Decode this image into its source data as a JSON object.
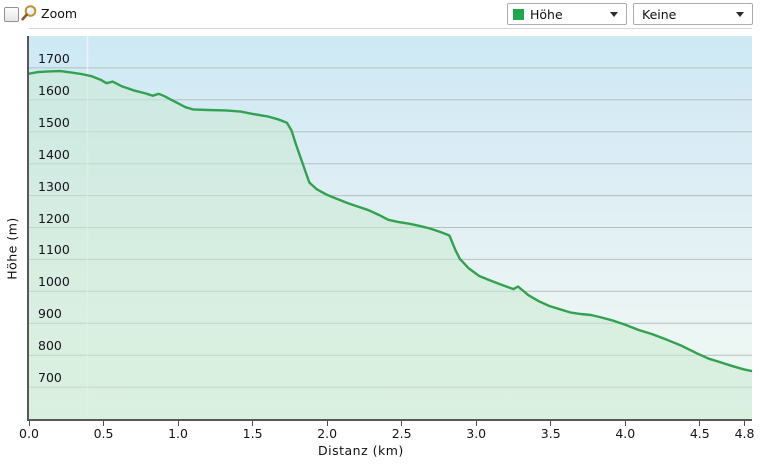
{
  "toolbar": {
    "zoom_label": "Zoom",
    "series_combo": {
      "value": "Höhe",
      "swatch_color": "#1fa84f"
    },
    "overlay_combo": {
      "value": "Keine"
    }
  },
  "chart_data": {
    "type": "area",
    "xlabel": "Distanz  (km)",
    "ylabel": "Höhe (m)",
    "xlim": [
      0,
      4.85
    ],
    "ylim": [
      600,
      1800
    ],
    "grid": true,
    "y_gridlines": [
      700,
      800,
      900,
      1000,
      1100,
      1200,
      1300,
      1400,
      1500,
      1600,
      1700
    ],
    "y_tick_labels": [
      "700",
      "800",
      "900",
      "1000",
      "1100",
      "1200",
      "1300",
      "1400",
      "1500",
      "1600",
      "1700"
    ],
    "x_ticks": [
      {
        "v": 0.0,
        "label": "0.0"
      },
      {
        "v": 0.5,
        "label": "0.5"
      },
      {
        "v": 1.0,
        "label": "1.0"
      },
      {
        "v": 1.5,
        "label": "1.5"
      },
      {
        "v": 2.0,
        "label": "2.0"
      },
      {
        "v": 2.5,
        "label": "2.5"
      },
      {
        "v": 3.0,
        "label": "3.0"
      },
      {
        "v": 3.5,
        "label": "3.5"
      },
      {
        "v": 4.0,
        "label": "4.0"
      },
      {
        "v": 4.5,
        "label": "4.5"
      },
      {
        "v": 4.8,
        "label": "4.8"
      }
    ],
    "colors": {
      "line": "#31a24e",
      "area_fill": "rgba(203,233,210,0.55)",
      "grid": "#b3bfc3",
      "axis": "#58585a"
    },
    "series": [
      {
        "name": "Höhe",
        "points": [
          [
            0.0,
            1682
          ],
          [
            0.06,
            1687
          ],
          [
            0.13,
            1689
          ],
          [
            0.21,
            1690
          ],
          [
            0.28,
            1686
          ],
          [
            0.35,
            1681
          ],
          [
            0.42,
            1674
          ],
          [
            0.48,
            1663
          ],
          [
            0.52,
            1652
          ],
          [
            0.56,
            1657
          ],
          [
            0.62,
            1643
          ],
          [
            0.7,
            1630
          ],
          [
            0.78,
            1620
          ],
          [
            0.83,
            1613
          ],
          [
            0.87,
            1619
          ],
          [
            0.91,
            1611
          ],
          [
            0.95,
            1601
          ],
          [
            1.0,
            1589
          ],
          [
            1.05,
            1577
          ],
          [
            1.1,
            1570
          ],
          [
            1.2,
            1568
          ],
          [
            1.32,
            1567
          ],
          [
            1.42,
            1563
          ],
          [
            1.5,
            1556
          ],
          [
            1.6,
            1548
          ],
          [
            1.67,
            1539
          ],
          [
            1.73,
            1528
          ],
          [
            1.76,
            1505
          ],
          [
            1.79,
            1462
          ],
          [
            1.83,
            1408
          ],
          [
            1.88,
            1341
          ],
          [
            1.93,
            1320
          ],
          [
            2.0,
            1302
          ],
          [
            2.07,
            1289
          ],
          [
            2.14,
            1276
          ],
          [
            2.21,
            1265
          ],
          [
            2.28,
            1254
          ],
          [
            2.35,
            1239
          ],
          [
            2.41,
            1224
          ],
          [
            2.48,
            1217
          ],
          [
            2.55,
            1212
          ],
          [
            2.62,
            1205
          ],
          [
            2.69,
            1197
          ],
          [
            2.76,
            1186
          ],
          [
            2.82,
            1175
          ],
          [
            2.86,
            1130
          ],
          [
            2.89,
            1102
          ],
          [
            2.95,
            1072
          ],
          [
            3.02,
            1048
          ],
          [
            3.09,
            1035
          ],
          [
            3.16,
            1022
          ],
          [
            3.22,
            1012
          ],
          [
            3.25,
            1007
          ],
          [
            3.28,
            1015
          ],
          [
            3.35,
            988
          ],
          [
            3.42,
            969
          ],
          [
            3.49,
            954
          ],
          [
            3.56,
            944
          ],
          [
            3.63,
            934
          ],
          [
            3.7,
            929
          ],
          [
            3.77,
            926
          ],
          [
            3.84,
            918
          ],
          [
            3.92,
            908
          ],
          [
            4.0,
            895
          ],
          [
            4.09,
            879
          ],
          [
            4.18,
            866
          ],
          [
            4.28,
            848
          ],
          [
            4.38,
            829
          ],
          [
            4.48,
            806
          ],
          [
            4.56,
            789
          ],
          [
            4.63,
            779
          ],
          [
            4.71,
            767
          ],
          [
            4.79,
            756
          ],
          [
            4.85,
            750
          ]
        ]
      }
    ]
  }
}
